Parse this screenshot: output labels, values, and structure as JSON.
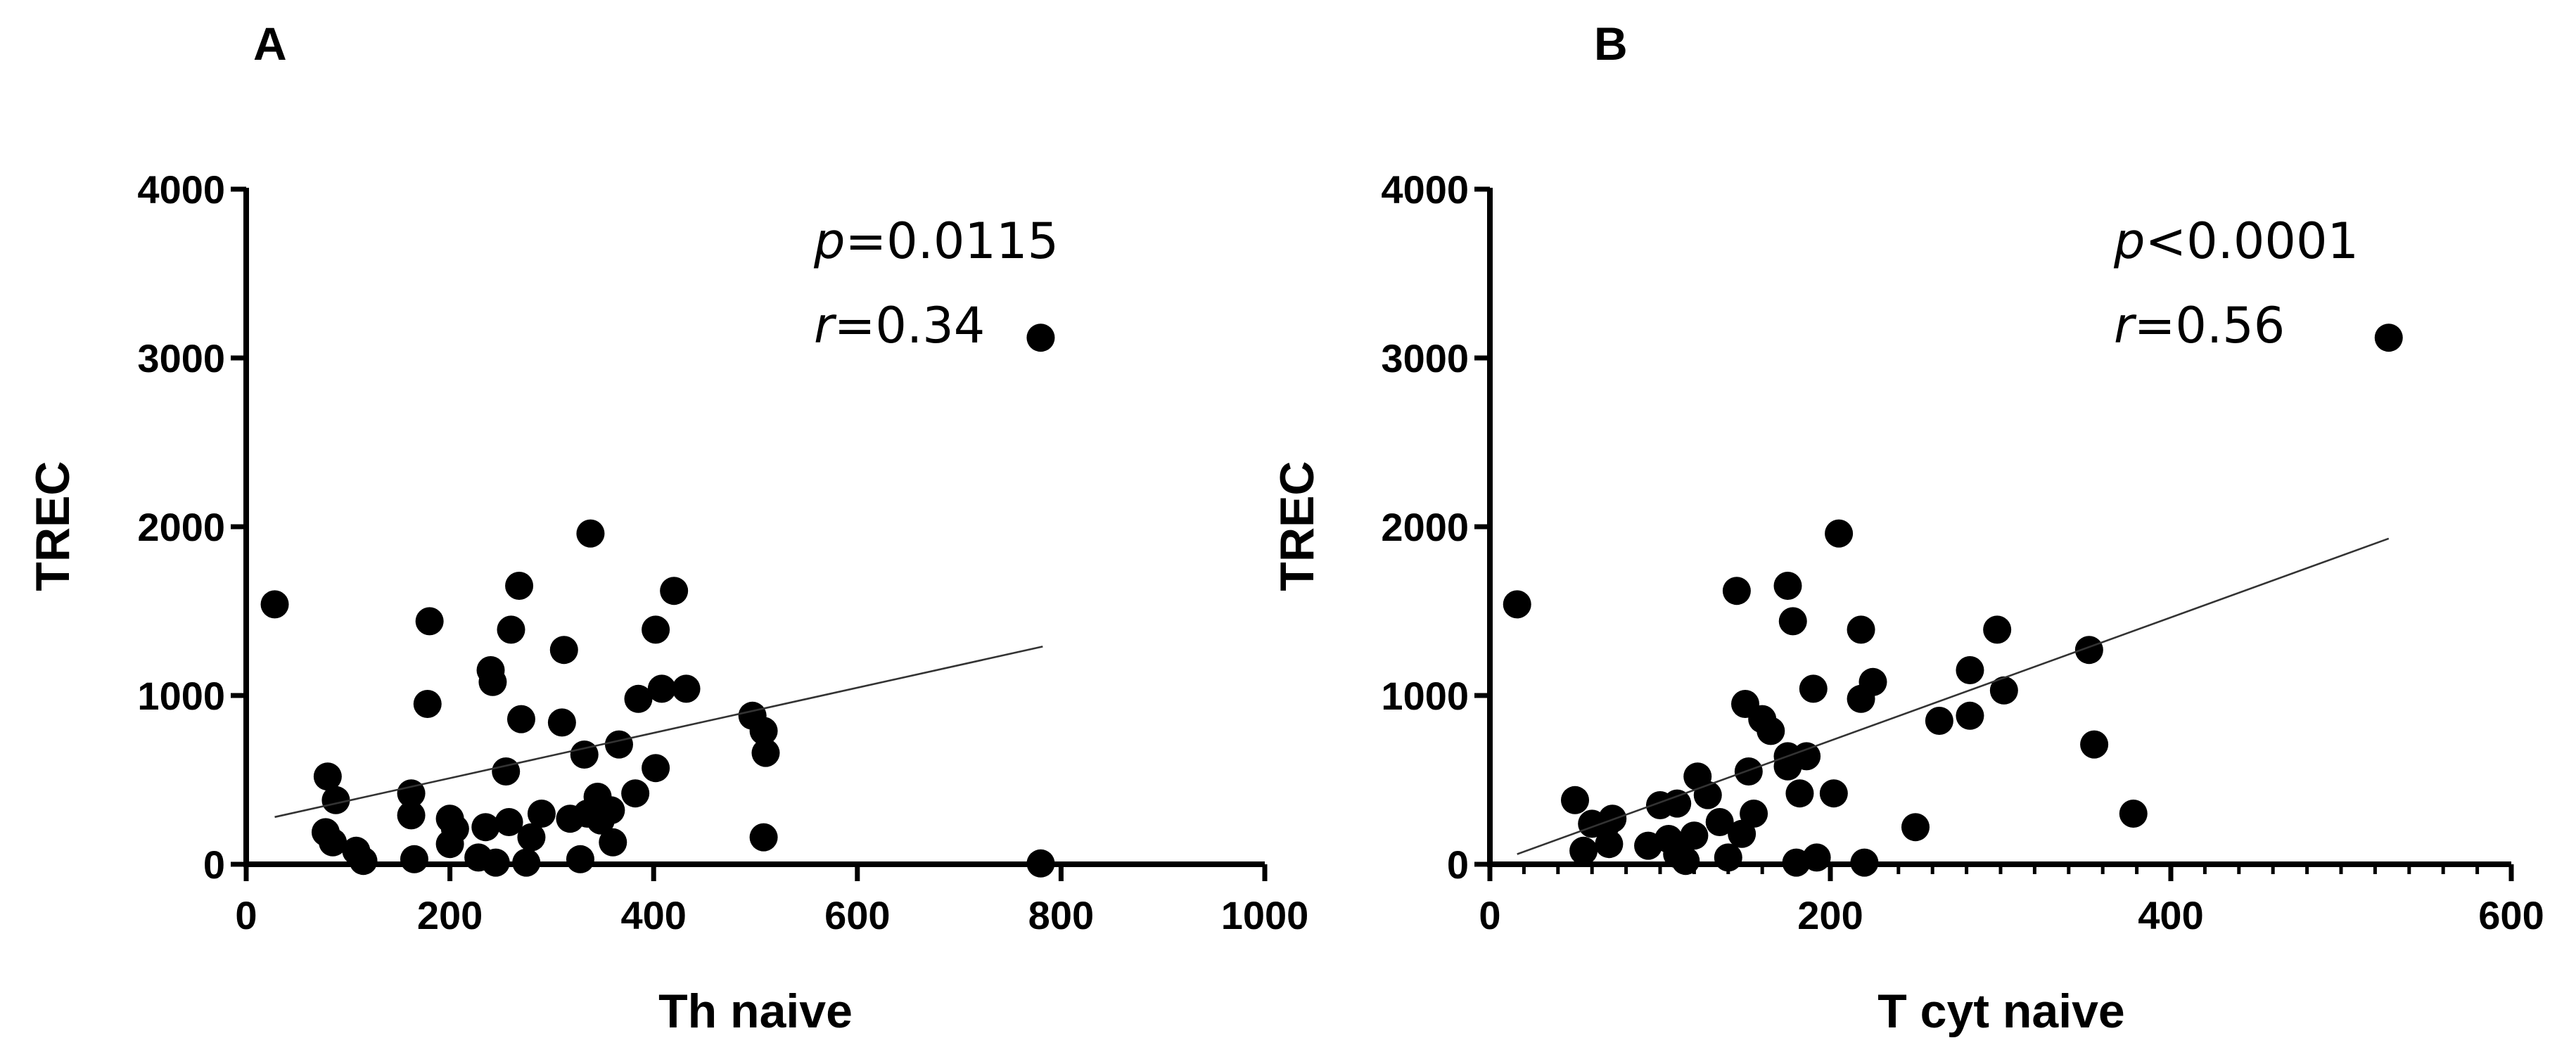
{
  "chart_data": [
    {
      "panel": "A",
      "type": "scatter",
      "xlabel": "Th naive",
      "ylabel": "TREC",
      "xlim": [
        0,
        1000
      ],
      "ylim": [
        0,
        4000
      ],
      "xticks": [
        0,
        200,
        400,
        600,
        800,
        1000
      ],
      "yticks": [
        0,
        1000,
        2000,
        3000,
        4000
      ],
      "xtick_labels": [
        "0",
        "200",
        "400",
        "600",
        "800",
        "1000"
      ],
      "ytick_labels": [
        "0",
        "1000",
        "2000",
        "3000",
        "4000"
      ],
      "stat_p_label": "p",
      "stat_p_value": "=0.0115",
      "stat_r_label": "r",
      "stat_r_value": "=0.34",
      "regression": {
        "x": [
          28,
          782
        ],
        "y": [
          280,
          1290
        ]
      },
      "points": [
        {
          "x": 28,
          "y": 1540
        },
        {
          "x": 780,
          "y": 3120
        },
        {
          "x": 780,
          "y": 5
        },
        {
          "x": 80,
          "y": 520
        },
        {
          "x": 88,
          "y": 380
        },
        {
          "x": 78,
          "y": 190
        },
        {
          "x": 85,
          "y": 130
        },
        {
          "x": 108,
          "y": 80
        },
        {
          "x": 115,
          "y": 20
        },
        {
          "x": 162,
          "y": 420
        },
        {
          "x": 162,
          "y": 290
        },
        {
          "x": 165,
          "y": 30
        },
        {
          "x": 180,
          "y": 1440
        },
        {
          "x": 178,
          "y": 950
        },
        {
          "x": 200,
          "y": 270
        },
        {
          "x": 205,
          "y": 210
        },
        {
          "x": 200,
          "y": 120
        },
        {
          "x": 228,
          "y": 40
        },
        {
          "x": 235,
          "y": 220
        },
        {
          "x": 240,
          "y": 1150
        },
        {
          "x": 242,
          "y": 1080
        },
        {
          "x": 245,
          "y": 10
        },
        {
          "x": 255,
          "y": 550
        },
        {
          "x": 258,
          "y": 250
        },
        {
          "x": 260,
          "y": 1390
        },
        {
          "x": 268,
          "y": 1650
        },
        {
          "x": 270,
          "y": 860
        },
        {
          "x": 275,
          "y": 10
        },
        {
          "x": 280,
          "y": 160
        },
        {
          "x": 290,
          "y": 300
        },
        {
          "x": 310,
          "y": 840
        },
        {
          "x": 312,
          "y": 1270
        },
        {
          "x": 318,
          "y": 270
        },
        {
          "x": 328,
          "y": 30
        },
        {
          "x": 332,
          "y": 650
        },
        {
          "x": 338,
          "y": 1960
        },
        {
          "x": 335,
          "y": 300
        },
        {
          "x": 345,
          "y": 400
        },
        {
          "x": 348,
          "y": 260
        },
        {
          "x": 358,
          "y": 320
        },
        {
          "x": 360,
          "y": 130
        },
        {
          "x": 366,
          "y": 710
        },
        {
          "x": 382,
          "y": 420
        },
        {
          "x": 385,
          "y": 980
        },
        {
          "x": 402,
          "y": 1390
        },
        {
          "x": 402,
          "y": 570
        },
        {
          "x": 408,
          "y": 1040
        },
        {
          "x": 420,
          "y": 1620
        },
        {
          "x": 432,
          "y": 1040
        },
        {
          "x": 497,
          "y": 880
        },
        {
          "x": 508,
          "y": 790
        },
        {
          "x": 510,
          "y": 660
        },
        {
          "x": 508,
          "y": 160
        }
      ]
    },
    {
      "panel": "B",
      "type": "scatter",
      "xlabel": "T cyt naive",
      "ylabel": "TREC",
      "xlim": [
        0,
        600
      ],
      "ylim": [
        0,
        4000
      ],
      "xticks": [
        0,
        200,
        400,
        600
      ],
      "yticks": [
        0,
        1000,
        2000,
        3000,
        4000
      ],
      "xtick_labels": [
        "0",
        "200",
        "400",
        "600"
      ],
      "ytick_labels": [
        "0",
        "1000",
        "2000",
        "3000",
        "4000"
      ],
      "x_minor_step": 20,
      "stat_p_label": "p",
      "stat_p_value": "<0.0001",
      "stat_r_label": "r",
      "stat_r_value": "=0.56",
      "regression": {
        "x": [
          16,
          528
        ],
        "y": [
          60,
          1930
        ]
      },
      "points": [
        {
          "x": 16,
          "y": 1540
        },
        {
          "x": 528,
          "y": 3120
        },
        {
          "x": 50,
          "y": 380
        },
        {
          "x": 55,
          "y": 80
        },
        {
          "x": 60,
          "y": 240
        },
        {
          "x": 68,
          "y": 230
        },
        {
          "x": 72,
          "y": 270
        },
        {
          "x": 70,
          "y": 120
        },
        {
          "x": 93,
          "y": 110
        },
        {
          "x": 100,
          "y": 350
        },
        {
          "x": 105,
          "y": 150
        },
        {
          "x": 110,
          "y": 360
        },
        {
          "x": 110,
          "y": 60
        },
        {
          "x": 115,
          "y": 20
        },
        {
          "x": 120,
          "y": 170
        },
        {
          "x": 122,
          "y": 520
        },
        {
          "x": 128,
          "y": 410
        },
        {
          "x": 135,
          "y": 250
        },
        {
          "x": 140,
          "y": 40
        },
        {
          "x": 145,
          "y": 1620
        },
        {
          "x": 148,
          "y": 180
        },
        {
          "x": 150,
          "y": 950
        },
        {
          "x": 152,
          "y": 550
        },
        {
          "x": 155,
          "y": 300
        },
        {
          "x": 160,
          "y": 860
        },
        {
          "x": 165,
          "y": 790
        },
        {
          "x": 175,
          "y": 1650
        },
        {
          "x": 175,
          "y": 580
        },
        {
          "x": 175,
          "y": 640
        },
        {
          "x": 178,
          "y": 1440
        },
        {
          "x": 180,
          "y": 10
        },
        {
          "x": 182,
          "y": 420
        },
        {
          "x": 186,
          "y": 640
        },
        {
          "x": 190,
          "y": 1040
        },
        {
          "x": 192,
          "y": 40
        },
        {
          "x": 202,
          "y": 420
        },
        {
          "x": 205,
          "y": 1960
        },
        {
          "x": 218,
          "y": 1390
        },
        {
          "x": 218,
          "y": 980
        },
        {
          "x": 220,
          "y": 10
        },
        {
          "x": 225,
          "y": 1080
        },
        {
          "x": 250,
          "y": 220
        },
        {
          "x": 264,
          "y": 850
        },
        {
          "x": 282,
          "y": 1150
        },
        {
          "x": 282,
          "y": 880
        },
        {
          "x": 298,
          "y": 1390
        },
        {
          "x": 302,
          "y": 1030
        },
        {
          "x": 352,
          "y": 1270
        },
        {
          "x": 355,
          "y": 710
        },
        {
          "x": 378,
          "y": 300
        }
      ]
    }
  ]
}
